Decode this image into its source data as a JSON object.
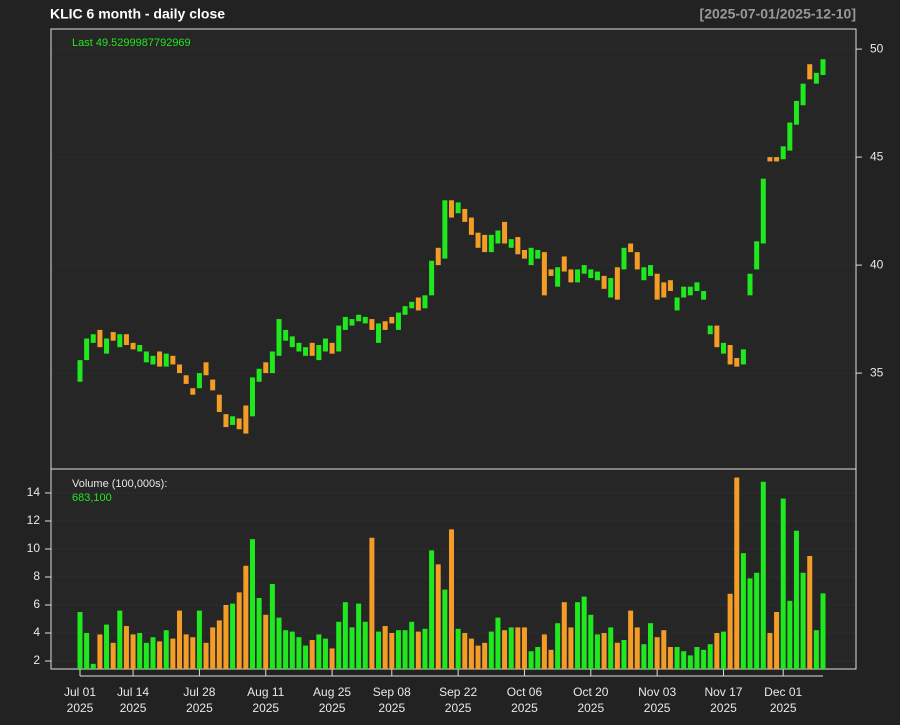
{
  "chart_data": {
    "type": "candlestick",
    "title": "KLIC  6 month - daily close",
    "date_range": "[2025-07-01/2025-12-10]",
    "last_annotation": "Last 49.5299987792969",
    "volume_label": "Volume (100,000s):",
    "volume_annotation": "683,100",
    "up_color": "#1fe81f",
    "down_color": "#f39c26",
    "grid": true,
    "categories": [
      "Jul 01\n2025",
      null,
      null,
      null,
      null,
      null,
      null,
      null,
      "Jul 14\n2025",
      null,
      null,
      null,
      null,
      null,
      null,
      null,
      null,
      null,
      "Jul 28\n2025",
      null,
      null,
      null,
      null,
      null,
      null,
      null,
      null,
      null,
      "Aug 11\n2025",
      null,
      null,
      null,
      null,
      null,
      null,
      null,
      null,
      null,
      "Aug 25\n2025",
      null,
      null,
      null,
      null,
      null,
      null,
      null,
      null,
      "Sep 08\n2025",
      null,
      null,
      null,
      null,
      null,
      null,
      null,
      null,
      null,
      "Sep 22\n2025",
      null,
      null,
      null,
      null,
      null,
      null,
      null,
      null,
      null,
      "Oct 06\n2025",
      null,
      null,
      null,
      null,
      null,
      null,
      null,
      null,
      null,
      "Oct 20\n2025",
      null,
      null,
      null,
      null,
      null,
      null,
      null,
      null,
      null,
      "Nov 03\n2025",
      null,
      null,
      null,
      null,
      null,
      null,
      null,
      null,
      null,
      "Nov 17\n2025",
      null,
      null,
      null,
      null,
      null,
      null,
      null,
      null,
      "Dec 01\n2025",
      null,
      null,
      null,
      null,
      null,
      null
    ],
    "open": [
      34.6,
      35.6,
      36.4,
      37.0,
      35.9,
      36.9,
      36.2,
      36.8,
      36.4,
      36.0,
      35.5,
      35.4,
      36.0,
      35.3,
      35.8,
      35.4,
      34.9,
      34.3,
      34.3,
      35.5,
      34.7,
      34.0,
      33.1,
      32.6,
      32.9,
      33.5,
      33.0,
      34.6,
      35.5,
      35.0,
      35.8,
      36.5,
      36.2,
      36.0,
      35.8,
      36.4,
      35.6,
      36.0,
      36.4,
      36.0,
      37.0,
      37.2,
      37.4,
      37.3,
      37.5,
      36.4,
      37.4,
      37.6,
      37.0,
      37.7,
      38.0,
      38.5,
      38.0,
      38.6,
      40.8,
      40.3,
      43.0,
      42.4,
      42.6,
      42.2,
      41.5,
      41.4,
      40.6,
      41.0,
      42.0,
      40.8,
      41.3,
      40.7,
      40.0,
      40.3,
      40.6,
      39.8,
      39.0,
      40.4,
      39.8,
      39.2,
      39.6,
      39.4,
      39.3,
      39.5,
      38.5,
      39.9,
      39.8,
      41.0,
      40.6,
      39.3,
      39.5,
      39.6,
      39.2,
      39.3,
      37.9,
      38.5,
      38.6,
      38.8,
      38.4,
      36.8,
      37.2,
      35.9,
      36.3,
      35.7,
      35.4,
      38.6,
      39.8,
      41.0,
      45.0,
      45.0,
      44.9,
      45.3,
      46.5,
      47.4,
      49.3,
      48.4,
      48.8
    ],
    "close": [
      35.6,
      36.6,
      36.8,
      36.2,
      36.6,
      36.5,
      36.8,
      36.3,
      36.1,
      36.3,
      36.0,
      35.8,
      35.3,
      35.9,
      35.4,
      35.0,
      34.5,
      34.0,
      35.0,
      34.9,
      34.2,
      33.2,
      32.5,
      33.0,
      32.4,
      32.2,
      34.8,
      35.2,
      35.0,
      36.0,
      37.5,
      37.0,
      36.7,
      36.4,
      36.2,
      35.8,
      36.3,
      36.6,
      35.9,
      37.2,
      37.6,
      37.5,
      37.7,
      37.6,
      37.0,
      37.3,
      37.0,
      37.3,
      37.8,
      38.1,
      38.3,
      37.9,
      38.6,
      40.2,
      40.0,
      43.0,
      42.2,
      42.9,
      42.0,
      41.4,
      40.8,
      40.6,
      41.4,
      41.6,
      41.0,
      41.2,
      40.5,
      40.3,
      40.8,
      40.7,
      38.6,
      39.5,
      39.9,
      39.7,
      39.2,
      39.8,
      40.0,
      39.8,
      39.7,
      38.9,
      39.4,
      38.4,
      40.8,
      40.6,
      39.8,
      39.9,
      40.0,
      38.4,
      38.5,
      38.8,
      38.5,
      39.0,
      39.0,
      39.2,
      38.8,
      37.2,
      36.2,
      36.4,
      35.4,
      35.3,
      36.1,
      39.6,
      41.1,
      44.0,
      44.8,
      44.8,
      45.5,
      46.6,
      47.6,
      48.4,
      48.6,
      48.9,
      49.5299987792969
    ],
    "volume": [
      5.5,
      4.0,
      1.8,
      3.9,
      4.6,
      3.3,
      5.6,
      4.5,
      3.9,
      4.0,
      3.3,
      3.7,
      3.4,
      4.2,
      3.6,
      5.6,
      3.9,
      3.7,
      5.6,
      3.3,
      4.4,
      4.9,
      6.0,
      6.1,
      6.9,
      8.8,
      10.7,
      6.5,
      5.3,
      7.5,
      5.1,
      4.2,
      4.1,
      3.7,
      3.1,
      3.5,
      3.9,
      3.6,
      2.9,
      4.8,
      6.2,
      4.4,
      6.1,
      4.8,
      10.8,
      4.1,
      4.5,
      4.0,
      4.2,
      4.2,
      4.8,
      4.1,
      4.3,
      9.9,
      8.9,
      7.1,
      11.4,
      4.3,
      4.0,
      3.6,
      3.1,
      3.3,
      4.1,
      5.1,
      4.2,
      4.4,
      4.4,
      4.4,
      2.7,
      3.0,
      3.9,
      2.8,
      4.7,
      6.2,
      4.4,
      6.2,
      6.6,
      5.3,
      3.9,
      4.0,
      4.4,
      3.3,
      3.5,
      5.6,
      4.4,
      3.2,
      4.7,
      3.7,
      4.2,
      3.0,
      3.0,
      2.7,
      2.4,
      3.0,
      2.8,
      3.2,
      4.0,
      4.1,
      6.8,
      15.1,
      9.7,
      7.9,
      8.3,
      14.8,
      4.0,
      5.5,
      13.6,
      6.3,
      11.3,
      8.3,
      9.5,
      4.2,
      6.831
    ],
    "ylim": [
      30.56,
      50.93
    ],
    "yticks": [
      35,
      40,
      45,
      50
    ],
    "volume_ylim": [
      1.43,
      15.71
    ],
    "volume_yticks": [
      2,
      4,
      6,
      8,
      10,
      12,
      14
    ]
  }
}
